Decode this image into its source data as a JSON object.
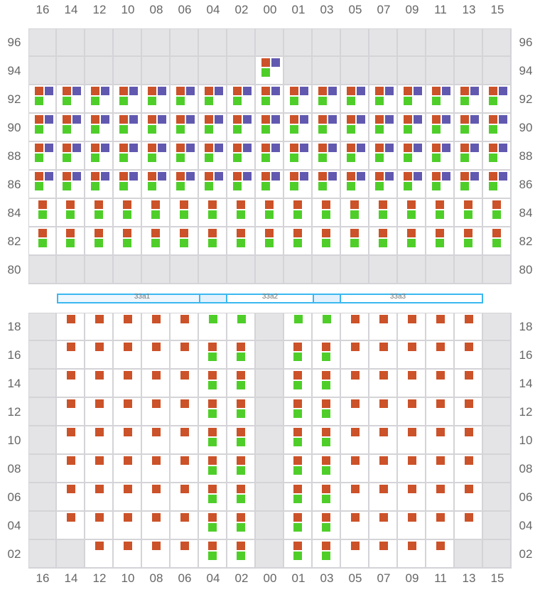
{
  "colors": {
    "orange": "#cc5229",
    "purple": "#6159b0",
    "green": "#4fce2a",
    "unavailable": "#e4e4e6"
  },
  "columns": [
    "16",
    "14",
    "12",
    "10",
    "08",
    "06",
    "04",
    "02",
    "00",
    "01",
    "03",
    "05",
    "07",
    "09",
    "11",
    "13",
    "15"
  ],
  "top_section": {
    "rows": [
      {
        "label": "96",
        "cells": "-----------------"
      },
      {
        "label": "94",
        "cells": "--------A--------"
      },
      {
        "label": "92",
        "cells": "AAAAAAAAAAAAAAAAA"
      },
      {
        "label": "90",
        "cells": "AAAAAAAAAAAAAAAAA"
      },
      {
        "label": "88",
        "cells": "AAAAAAAAAAAAAAAAA"
      },
      {
        "label": "86",
        "cells": "AAAAAAAAAAAAAAAAA"
      },
      {
        "label": "84",
        "cells": "BBBBBBBBBBBBBBBBB"
      },
      {
        "label": "82",
        "cells": "BBBBBBBBBBBBBBBBB"
      },
      {
        "label": "80",
        "cells": "-----------------"
      }
    ]
  },
  "ranges": [
    {
      "label": "33a1"
    },
    {
      "label": "33a2"
    },
    {
      "label": "33a3"
    }
  ],
  "bottom_section": {
    "rows": [
      {
        "label": "18",
        "cells": "-OOOOOGG-GGOOOOO-"
      },
      {
        "label": "16",
        "cells": "-OOOOOBB-BBOOOOO-"
      },
      {
        "label": "14",
        "cells": "-OOOOOBB-BBOOOOO-"
      },
      {
        "label": "12",
        "cells": "-OOOOOBB-BBOOOOO-"
      },
      {
        "label": "10",
        "cells": "-OOOOOBB-BBOOOOO-"
      },
      {
        "label": "08",
        "cells": "-OOOOOBB-BBOOOOO-"
      },
      {
        "label": "06",
        "cells": "-OOOOOBB-BBOOOOO-"
      },
      {
        "label": "04",
        "cells": "-OOOOOBB-BBOOOOO-"
      },
      {
        "label": "02",
        "cells": "--OOOOBB-BBOOOO--"
      }
    ]
  }
}
